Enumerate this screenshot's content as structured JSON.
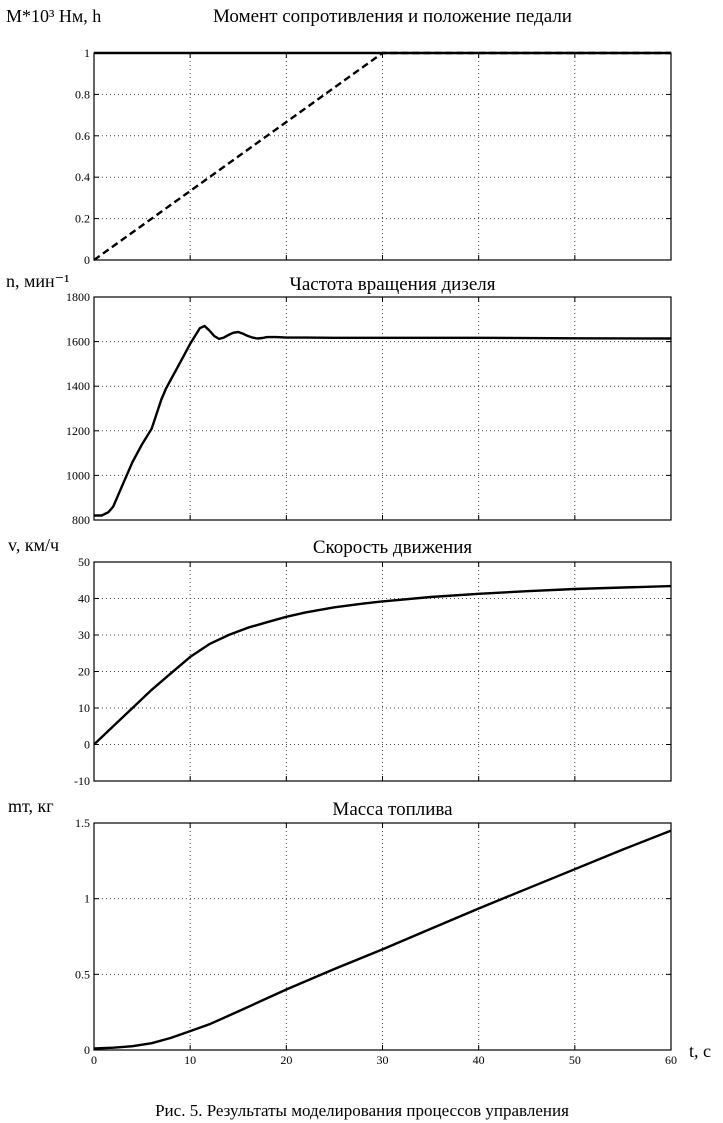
{
  "caption": "Рис. 5. Результаты моделирования процессов управления",
  "x_axis_label": "t, с",
  "chart_data": [
    {
      "type": "line",
      "title": "Момент сопротивления и положение педали",
      "ylabel": "М*10³ Нм, h",
      "xlim": [
        0,
        60
      ],
      "ylim": [
        0,
        1
      ],
      "yticks": [
        0,
        0.2,
        0.4,
        0.6,
        0.8,
        1
      ],
      "ytick_labels": [
        "0",
        "0.2",
        "0.4",
        "0.6",
        "0.8",
        "1"
      ],
      "xticks": [
        0,
        10,
        20,
        30,
        40,
        50,
        60
      ],
      "xtick_labels": [],
      "grid": true,
      "series": [
        {
          "style": "solid",
          "x": [
            0,
            60
          ],
          "y": [
            1,
            1
          ]
        },
        {
          "style": "dashed",
          "x": [
            0,
            30,
            60
          ],
          "y": [
            0,
            1,
            1
          ]
        }
      ]
    },
    {
      "type": "line",
      "title": "Частота вращения дизеля",
      "ylabel": "n, мин⁻¹",
      "xlim": [
        0,
        60
      ],
      "ylim": [
        800,
        1800
      ],
      "yticks": [
        800,
        1000,
        1200,
        1400,
        1600,
        1800
      ],
      "ytick_labels": [
        "800",
        "1000",
        "1200",
        "1400",
        "1600",
        "1800"
      ],
      "xticks": [
        0,
        10,
        20,
        30,
        40,
        50,
        60
      ],
      "xtick_labels": [],
      "grid": true,
      "series": [
        {
          "style": "solid",
          "x": [
            0,
            0.8,
            1.5,
            2,
            3,
            4,
            5,
            6,
            7,
            7.5,
            8,
            9,
            10,
            11,
            11.5,
            12,
            12.5,
            13,
            13.5,
            14,
            14.5,
            15,
            15.5,
            16,
            16.5,
            17,
            17.5,
            18,
            19,
            20,
            22,
            25,
            30,
            40,
            50,
            60
          ],
          "y": [
            820,
            820,
            835,
            860,
            960,
            1060,
            1140,
            1210,
            1340,
            1390,
            1430,
            1510,
            1590,
            1660,
            1670,
            1650,
            1625,
            1612,
            1618,
            1630,
            1640,
            1643,
            1635,
            1625,
            1618,
            1614,
            1616,
            1620,
            1620,
            1618,
            1618,
            1617,
            1617,
            1617,
            1615,
            1614
          ]
        }
      ]
    },
    {
      "type": "line",
      "title": "Скорость движения",
      "ylabel": "v, км/ч",
      "xlim": [
        0,
        60
      ],
      "ylim": [
        -10,
        50
      ],
      "yticks": [
        -10,
        0,
        10,
        20,
        30,
        40,
        50
      ],
      "ytick_labels": [
        "-10",
        "0",
        "10",
        "20",
        "30",
        "40",
        "50"
      ],
      "xticks": [
        0,
        10,
        20,
        30,
        40,
        50,
        60
      ],
      "xtick_labels": [],
      "grid": true,
      "series": [
        {
          "style": "solid",
          "x": [
            0,
            2,
            4,
            6,
            8,
            10,
            12,
            14,
            16,
            18,
            20,
            22,
            25,
            28,
            30,
            35,
            40,
            45,
            50,
            55,
            60
          ],
          "y": [
            0,
            5,
            10,
            15,
            19.5,
            24,
            27.5,
            30,
            32,
            33.5,
            35,
            36.2,
            37.6,
            38.6,
            39.2,
            40.4,
            41.3,
            42,
            42.6,
            43,
            43.4
          ]
        }
      ]
    },
    {
      "type": "line",
      "title": "Масса топлива",
      "ylabel": "mт, кг",
      "xlim": [
        0,
        60
      ],
      "ylim": [
        0,
        1.5
      ],
      "yticks": [
        0,
        0.5,
        1,
        1.5
      ],
      "ytick_labels": [
        "0",
        "0.5",
        "1",
        "1.5"
      ],
      "xticks": [
        0,
        10,
        20,
        30,
        40,
        50,
        60
      ],
      "xtick_labels": [
        "0",
        "10",
        "20",
        "30",
        "40",
        "50",
        "60"
      ],
      "grid": true,
      "series": [
        {
          "style": "solid",
          "x": [
            0,
            2,
            4,
            6,
            8,
            10,
            12,
            15,
            20,
            25,
            30,
            35,
            40,
            45,
            50,
            55,
            60
          ],
          "y": [
            0.01,
            0.015,
            0.025,
            0.045,
            0.08,
            0.125,
            0.17,
            0.255,
            0.4,
            0.535,
            0.665,
            0.8,
            0.935,
            1.065,
            1.195,
            1.325,
            1.45
          ]
        }
      ]
    }
  ]
}
